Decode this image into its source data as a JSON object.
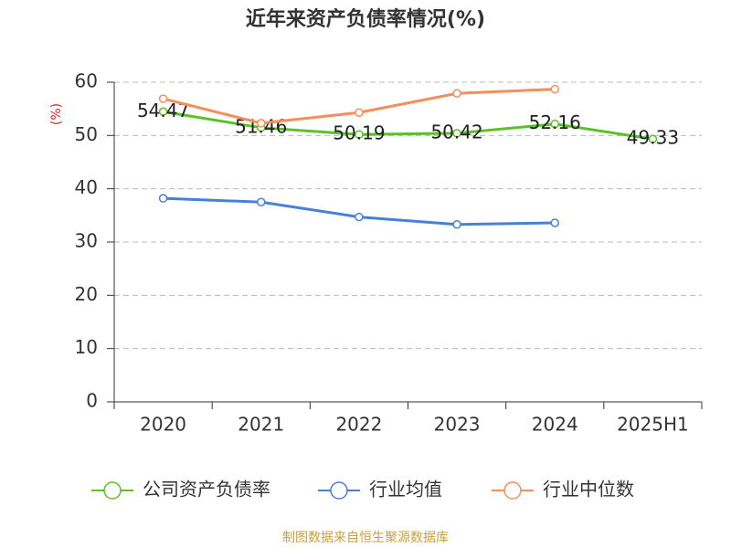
{
  "chart_data": {
    "type": "line",
    "title": "近年来资产负债率情况(%)",
    "y_label": "(%)",
    "categories": [
      "2020",
      "2021",
      "2022",
      "2023",
      "2024",
      "2025H1"
    ],
    "series": [
      {
        "name": "公司资产负债率",
        "color": "#5cc02a",
        "values": [
          54.47,
          51.46,
          50.19,
          50.42,
          52.16,
          49.33
        ],
        "show_labels": true
      },
      {
        "name": "行业均值",
        "color": "#4a7fd6",
        "values": [
          38.2,
          37.5,
          34.7,
          33.3,
          33.6,
          null
        ]
      },
      {
        "name": "行业中位数",
        "color": "#f48e5a",
        "values": [
          56.9,
          52.3,
          54.3,
          57.9,
          58.7,
          null
        ]
      }
    ],
    "ylim": [
      0,
      60
    ],
    "yticks": [
      0,
      10,
      20,
      30,
      40,
      50,
      60
    ],
    "grid": true,
    "legend": "bottom",
    "source": "制图数据来自恒生聚源数据库"
  }
}
